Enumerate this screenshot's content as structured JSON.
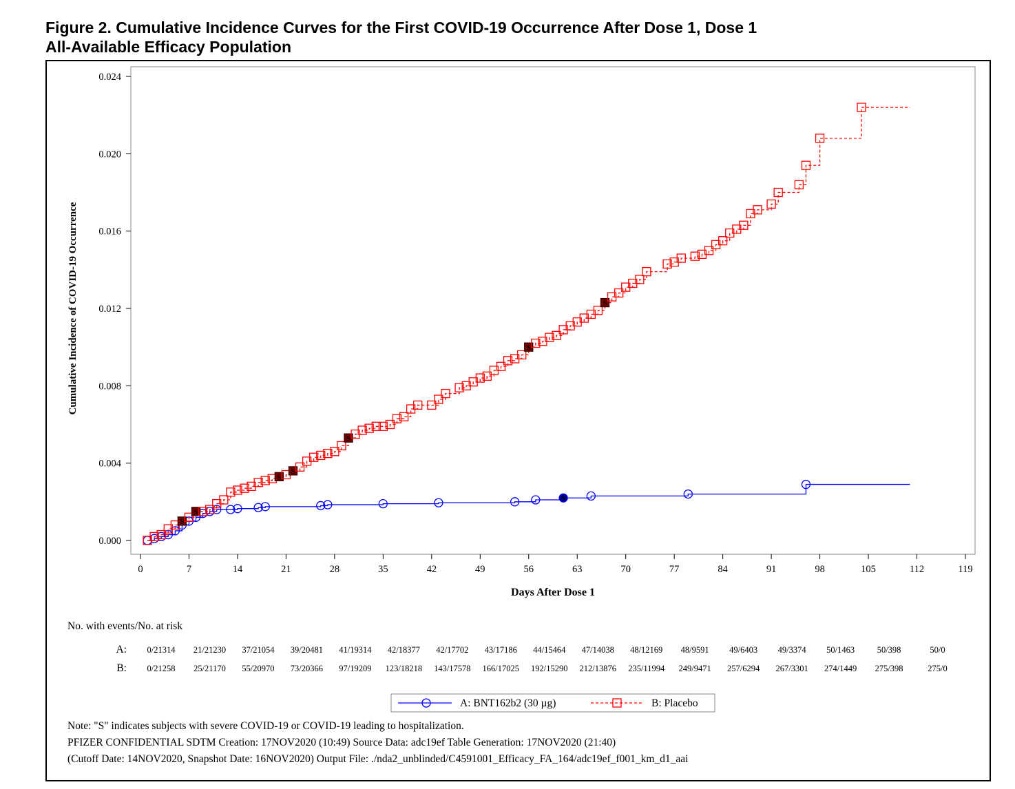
{
  "figure": {
    "title_line1": "Figure 2. Cumulative Incidence Curves for the First COVID-19 Occurrence After Dose 1, Dose 1",
    "title_line2": "All-Available Efficacy Population"
  },
  "chart_data": {
    "type": "line",
    "xlabel": "Days After Dose 1",
    "ylabel": "Cumulative Incidence of COVID-19 Occurrence",
    "xlim": [
      0,
      119
    ],
    "ylim": [
      0,
      0.024
    ],
    "x_ticks": [
      "0",
      "7",
      "14",
      "21",
      "28",
      "35",
      "42",
      "49",
      "56",
      "63",
      "70",
      "77",
      "84",
      "91",
      "98",
      "105",
      "112",
      "119"
    ],
    "y_ticks": [
      "0.000",
      "0.004",
      "0.008",
      "0.012",
      "0.016",
      "0.020",
      "0.024"
    ],
    "grid": false,
    "legend_position": "bottom",
    "series": [
      {
        "name": "A: BNT162b2 (30 µg)",
        "color": "#0000ff",
        "line_style": "solid",
        "marker": "circle",
        "end_x": 111,
        "points": [
          [
            1,
            0.0
          ],
          [
            2,
            0.0001
          ],
          [
            3,
            0.0002
          ],
          [
            4,
            0.0003
          ],
          [
            5,
            0.0005
          ],
          [
            6,
            0.0008
          ],
          [
            7,
            0.001
          ],
          [
            8,
            0.0012
          ],
          [
            9,
            0.0014
          ],
          [
            10,
            0.0015
          ],
          [
            11,
            0.0016
          ],
          [
            13,
            0.0016
          ],
          [
            14,
            0.00165
          ],
          [
            17,
            0.0017
          ],
          [
            18,
            0.00175
          ],
          [
            26,
            0.0018
          ],
          [
            27,
            0.00185
          ],
          [
            35,
            0.0019
          ],
          [
            43,
            0.00195
          ],
          [
            54,
            0.002
          ],
          [
            57,
            0.0021
          ],
          [
            61,
            0.0022
          ],
          [
            65,
            0.0023
          ],
          [
            79,
            0.0024
          ],
          [
            96,
            0.0029
          ]
        ],
        "severe_points": [
          [
            61,
            0.0022
          ]
        ]
      },
      {
        "name": "B: Placebo",
        "color": "#ff0000",
        "line_style": "dashed",
        "marker": "square",
        "end_x": 111,
        "points": [
          [
            1,
            0.0
          ],
          [
            2,
            0.0002
          ],
          [
            3,
            0.0003
          ],
          [
            4,
            0.0006
          ],
          [
            5,
            0.0008
          ],
          [
            6,
            0.001
          ],
          [
            7,
            0.0012
          ],
          [
            8,
            0.0015
          ],
          [
            9,
            0.0015
          ],
          [
            10,
            0.0016
          ],
          [
            11,
            0.0019
          ],
          [
            12,
            0.0021
          ],
          [
            13,
            0.0025
          ],
          [
            14,
            0.0026
          ],
          [
            15,
            0.0027
          ],
          [
            16,
            0.0028
          ],
          [
            17,
            0.003
          ],
          [
            18,
            0.0031
          ],
          [
            19,
            0.0032
          ],
          [
            20,
            0.0033
          ],
          [
            21,
            0.0034
          ],
          [
            22,
            0.0036
          ],
          [
            23,
            0.0038
          ],
          [
            24,
            0.0041
          ],
          [
            25,
            0.0043
          ],
          [
            26,
            0.0044
          ],
          [
            27,
            0.0045
          ],
          [
            28,
            0.0046
          ],
          [
            29,
            0.0049
          ],
          [
            30,
            0.0053
          ],
          [
            31,
            0.0055
          ],
          [
            32,
            0.0057
          ],
          [
            33,
            0.0058
          ],
          [
            34,
            0.0059
          ],
          [
            35,
            0.0059
          ],
          [
            36,
            0.006
          ],
          [
            37,
            0.0063
          ],
          [
            38,
            0.0064
          ],
          [
            39,
            0.0068
          ],
          [
            40,
            0.007
          ],
          [
            42,
            0.007
          ],
          [
            43,
            0.0073
          ],
          [
            44,
            0.0076
          ],
          [
            46,
            0.0079
          ],
          [
            47,
            0.008
          ],
          [
            48,
            0.0082
          ],
          [
            49,
            0.0084
          ],
          [
            50,
            0.0085
          ],
          [
            51,
            0.0088
          ],
          [
            52,
            0.009
          ],
          [
            53,
            0.0093
          ],
          [
            54,
            0.0094
          ],
          [
            55,
            0.0096
          ],
          [
            56,
            0.01
          ],
          [
            57,
            0.0102
          ],
          [
            58,
            0.0103
          ],
          [
            59,
            0.0105
          ],
          [
            60,
            0.0106
          ],
          [
            61,
            0.0109
          ],
          [
            62,
            0.0111
          ],
          [
            63,
            0.0113
          ],
          [
            64,
            0.0115
          ],
          [
            65,
            0.0117
          ],
          [
            66,
            0.0119
          ],
          [
            67,
            0.0123
          ],
          [
            68,
            0.0126
          ],
          [
            69,
            0.0128
          ],
          [
            70,
            0.0131
          ],
          [
            71,
            0.0133
          ],
          [
            72,
            0.0135
          ],
          [
            73,
            0.0139
          ],
          [
            76,
            0.0143
          ],
          [
            77,
            0.0144
          ],
          [
            78,
            0.0146
          ],
          [
            80,
            0.0147
          ],
          [
            81,
            0.0148
          ],
          [
            82,
            0.015
          ],
          [
            83,
            0.0153
          ],
          [
            84,
            0.0155
          ],
          [
            85,
            0.0159
          ],
          [
            86,
            0.0161
          ],
          [
            87,
            0.0163
          ],
          [
            88,
            0.0169
          ],
          [
            89,
            0.0171
          ],
          [
            91,
            0.0174
          ],
          [
            92,
            0.018
          ],
          [
            95,
            0.0184
          ],
          [
            96,
            0.0194
          ],
          [
            98,
            0.0208
          ],
          [
            104,
            0.0224
          ]
        ],
        "severe_points": [
          [
            6,
            0.001
          ],
          [
            8,
            0.0015
          ],
          [
            20,
            0.0033
          ],
          [
            22,
            0.0036
          ],
          [
            30,
            0.0053
          ],
          [
            56,
            0.01
          ],
          [
            67,
            0.0123
          ]
        ]
      }
    ]
  },
  "risk_table": {
    "title": "No. with events/No. at risk",
    "rows": [
      {
        "label": "A:",
        "values": [
          "0/21314",
          "21/21230",
          "37/21054",
          "39/20481",
          "41/19314",
          "42/18377",
          "42/17702",
          "43/17186",
          "44/15464",
          "47/14038",
          "48/12169",
          "48/9591",
          "49/6403",
          "49/3374",
          "50/1463",
          "50/398",
          "50/0"
        ]
      },
      {
        "label": "B:",
        "values": [
          "0/21258",
          "25/21170",
          "55/20970",
          "73/20366",
          "97/19209",
          "123/18218",
          "143/17578",
          "166/17025",
          "192/15290",
          "212/13876",
          "235/11994",
          "249/9471",
          "257/6294",
          "267/3301",
          "274/1449",
          "275/398",
          "275/0"
        ]
      }
    ]
  },
  "legend": {
    "a_label": "A: BNT162b2 (30 µg)",
    "b_label": "B: Placebo"
  },
  "severe_marker_letter": "S",
  "notes": {
    "line1": "Note: \"S\" indicates subjects with severe COVID-19 or COVID-19 leading to hospitalization.",
    "line2": "PFIZER CONFIDENTIAL  SDTM Creation: 17NOV2020 (10:49)  Source Data: adc19ef  Table Generation: 17NOV2020 (21:40)",
    "line3": "(Cutoff Date: 14NOV2020, Snapshot Date: 16NOV2020) Output File: ./nda2_unblinded/C4591001_Efficacy_FA_164/adc19ef_f001_km_d1_aai"
  }
}
